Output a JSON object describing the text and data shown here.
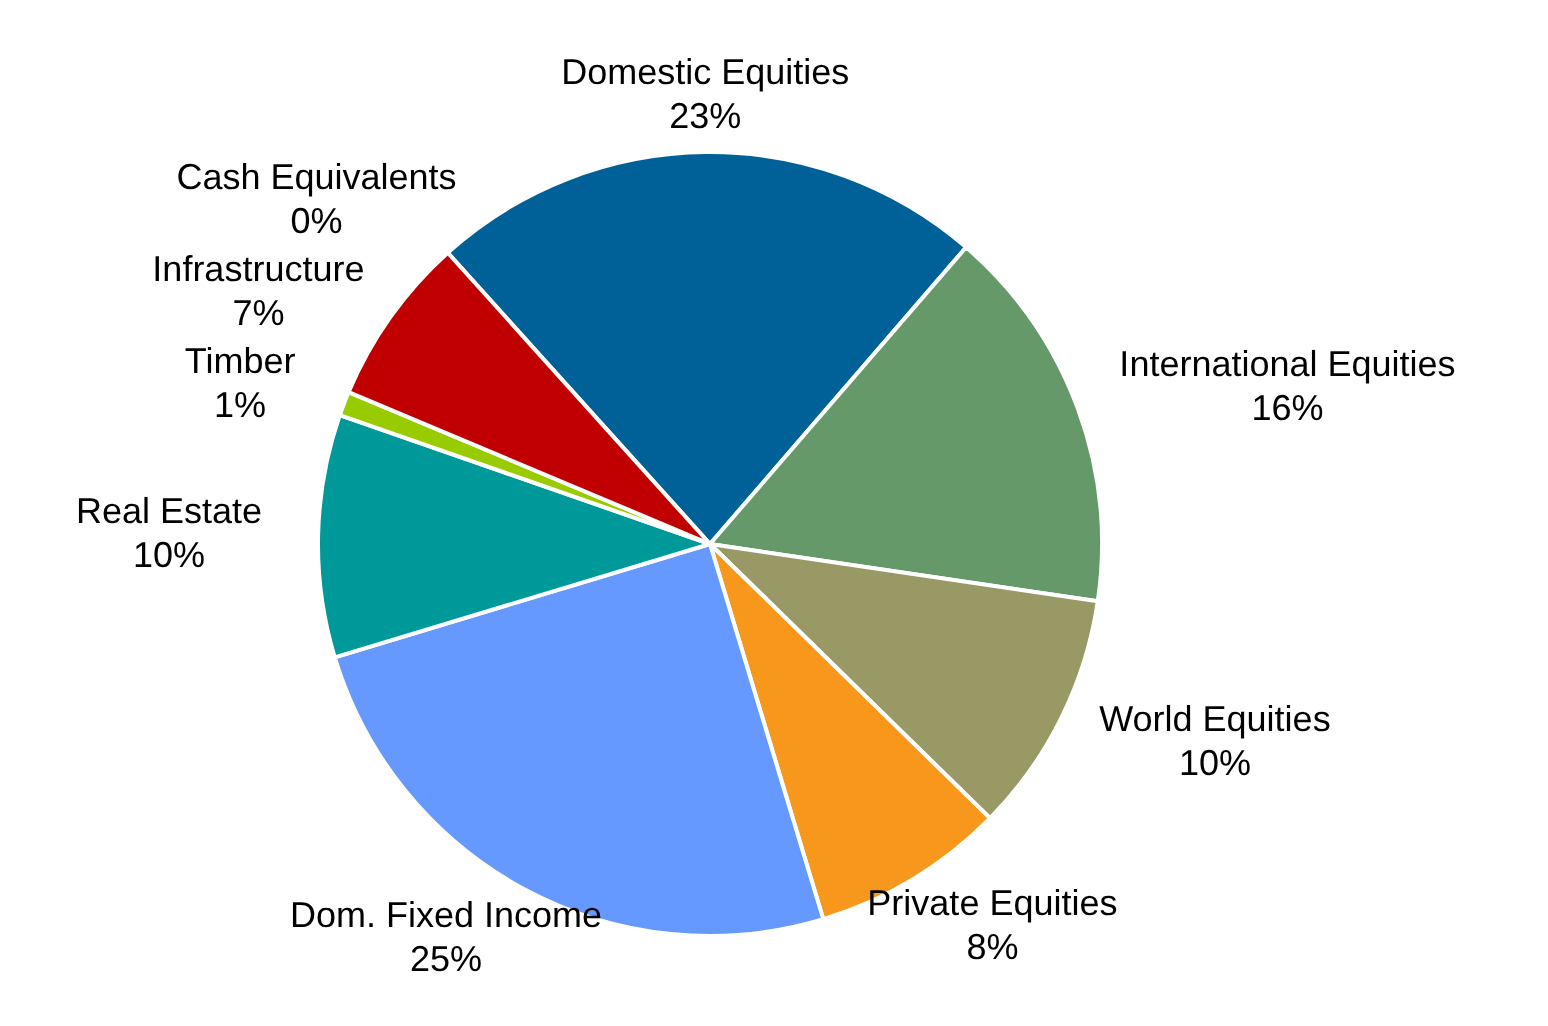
{
  "chart_data": {
    "type": "pie",
    "categories": [
      "Domestic Equities",
      "International Equities",
      "World Equities",
      "Private Equities",
      "Dom. Fixed Income",
      "Real Estate",
      "Timber",
      "Infrastructure",
      "Cash Equivalents"
    ],
    "values": [
      23,
      16,
      10,
      8,
      25,
      10,
      1,
      7,
      0
    ],
    "colors": [
      "#006098",
      "#66996a",
      "#999966",
      "#f7981d",
      "#6699ff",
      "#009999",
      "#99cc00",
      "#c00000",
      "#1f4e79"
    ],
    "value_labels": [
      "23%",
      "16%",
      "10%",
      "8%",
      "25%",
      "10%",
      "1%",
      "7%",
      "0%"
    ],
    "legend": false
  }
}
